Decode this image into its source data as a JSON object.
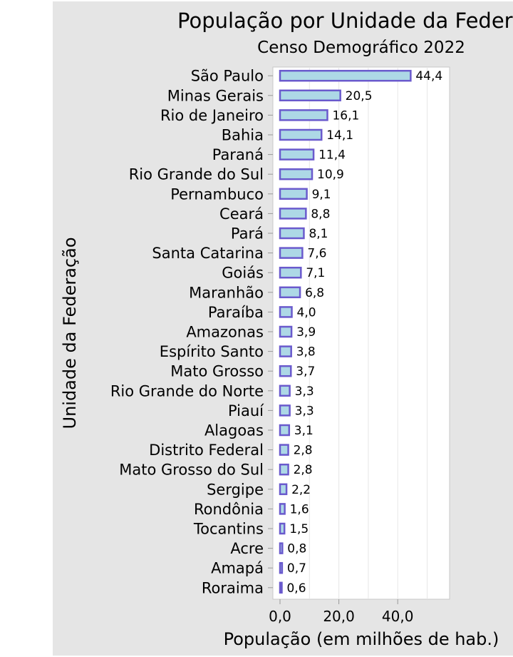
{
  "chart_data": {
    "type": "bar",
    "orientation": "horizontal",
    "title": "População por Unidade da Federação",
    "subtitle": "Censo Demográfico 2022",
    "xlabel": "População (em milhões de hab.)",
    "ylabel": "Unidade da Federação",
    "xlim": [
      0,
      53
    ],
    "xticks": [
      "0,0",
      "20,0",
      "40,0"
    ],
    "xtick_values": [
      0,
      20,
      40
    ],
    "grid": true,
    "bar_fill": "#add8e6",
    "bar_stroke": "#6a5acd",
    "categories": [
      "São Paulo",
      "Minas Gerais",
      "Rio de Janeiro",
      "Bahia",
      "Paraná",
      "Rio Grande do Sul",
      "Pernambuco",
      "Ceará",
      "Pará",
      "Santa Catarina",
      "Goiás",
      "Maranhão",
      "Paraíba",
      "Amazonas",
      "Espírito Santo",
      "Mato Grosso",
      "Rio Grande do Norte",
      "Piauí",
      "Alagoas",
      "Distrito Federal",
      "Mato Grosso do Sul",
      "Sergipe",
      "Rondônia",
      "Tocantins",
      "Acre",
      "Amapá",
      "Roraima"
    ],
    "values": [
      44.4,
      20.5,
      16.1,
      14.1,
      11.4,
      10.9,
      9.1,
      8.8,
      8.1,
      7.6,
      7.1,
      6.8,
      4.0,
      3.9,
      3.8,
      3.7,
      3.3,
      3.3,
      3.1,
      2.8,
      2.8,
      2.2,
      1.6,
      1.5,
      0.8,
      0.7,
      0.6
    ],
    "value_labels": [
      "44,4",
      "20,5",
      "16,1",
      "14,1",
      "11,4",
      "10,9",
      "9,1",
      "8,8",
      "8,1",
      "7,6",
      "7,1",
      "6,8",
      "4,0",
      "3,9",
      "3,8",
      "3,7",
      "3,3",
      "3,3",
      "3,1",
      "2,8",
      "2,8",
      "2,2",
      "1,6",
      "1,5",
      "0,8",
      "0,7",
      "0,6"
    ]
  }
}
